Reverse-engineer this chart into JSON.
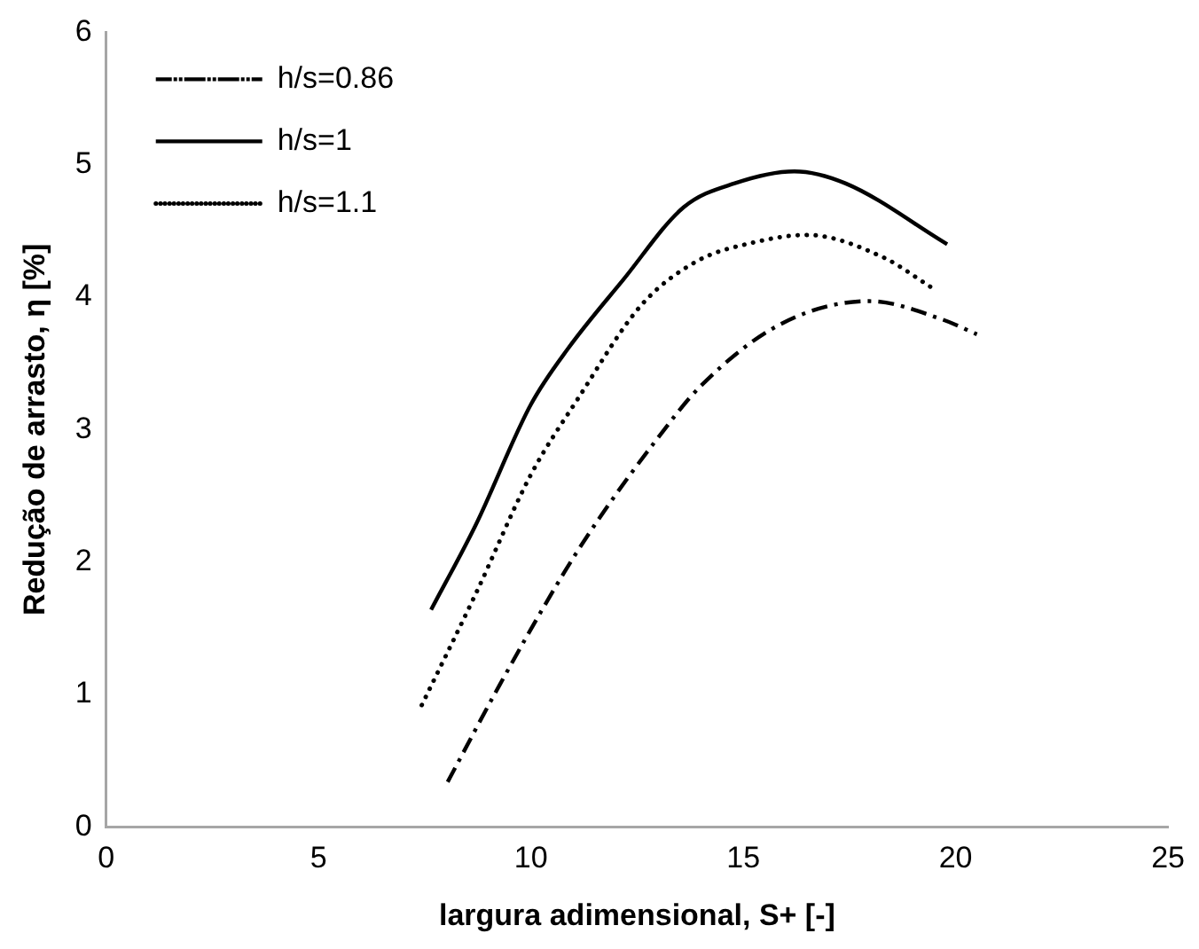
{
  "chart_data": {
    "type": "line",
    "xlabel": "largura adimensional, S+ [-]",
    "ylabel": "Redução de arrasto, η [%]",
    "xlim": [
      0,
      25
    ],
    "xticks": [
      0,
      5,
      10,
      15,
      20,
      25
    ],
    "ylim": [
      0,
      6
    ],
    "yticks": [
      0,
      1,
      2,
      3,
      4,
      5,
      6
    ],
    "grid": false,
    "legend": "top left",
    "marker": "none",
    "series": [
      {
        "name": "h/s=0.86",
        "color": "#000000",
        "line_style": "dashdot",
        "x": [
          8.04,
          9.26,
          10.8,
          11.65,
          12.9,
          14.0,
          15.9,
          17.96,
          19.7,
          20.5
        ],
        "values": [
          0.34,
          1.07,
          1.93,
          2.35,
          2.9,
          3.33,
          3.8,
          3.97,
          3.83,
          3.72
        ]
      },
      {
        "name": "h/s=1",
        "color": "#000000",
        "line_style": "solid",
        "x": [
          7.65,
          8.7,
          10.0,
          10.87,
          12.17,
          13.6,
          14.8,
          16.2,
          17.4,
          19.8
        ],
        "values": [
          1.64,
          2.28,
          3.19,
          3.61,
          4.13,
          4.68,
          4.86,
          4.95,
          4.86,
          4.4
        ]
      },
      {
        "name": "h/s=1.1",
        "color": "#000000",
        "line_style": "dotted",
        "x": [
          7.43,
          8.7,
          10.0,
          11.1,
          12.6,
          13.9,
          15.2,
          16.5,
          18.3,
          19.4
        ],
        "values": [
          0.92,
          1.76,
          2.66,
          3.23,
          3.94,
          4.27,
          4.41,
          4.47,
          4.3,
          4.08
        ]
      }
    ]
  }
}
